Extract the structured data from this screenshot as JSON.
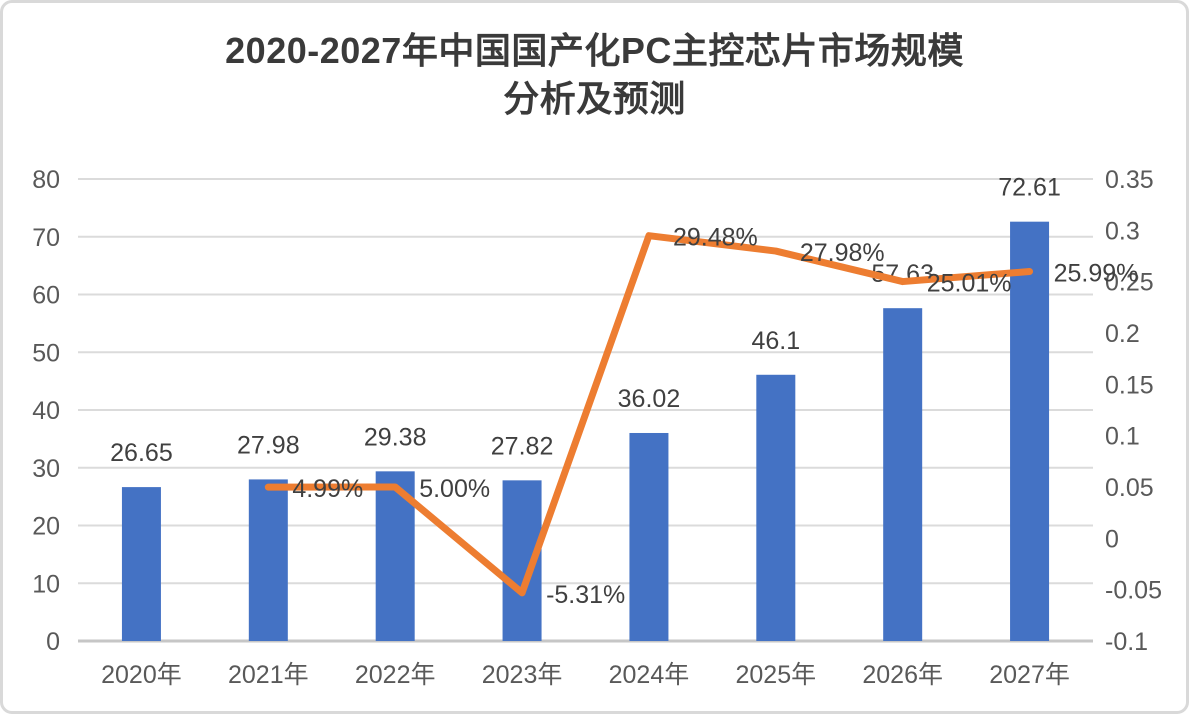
{
  "title": {
    "line1": "2020-2027年中国国产化PC主控芯片市场规模",
    "line2": "分析及预测"
  },
  "chart_data": {
    "type": "combo-bar-line",
    "categories": [
      "2020年",
      "2021年",
      "2022年",
      "2023年",
      "2024年",
      "2025年",
      "2026年",
      "2027年"
    ],
    "series": [
      {
        "type": "bar",
        "axis": "left",
        "values": [
          26.65,
          27.98,
          29.38,
          27.82,
          36.02,
          46.1,
          57.63,
          72.61
        ],
        "labels": [
          "26.65",
          "27.98",
          "29.38",
          "27.82",
          "36.02",
          "46.1",
          "57.63",
          "72.61"
        ]
      },
      {
        "type": "line",
        "axis": "right",
        "values": [
          null,
          0.0499,
          0.05,
          -0.0531,
          0.2948,
          0.2798,
          0.2501,
          0.2599
        ],
        "labels": [
          null,
          "4.99%",
          "5.00%",
          "-5.31%",
          "29.48%",
          "27.98%",
          "25.01%",
          "25.99%"
        ]
      }
    ],
    "left_axis": {
      "min": 0,
      "max": 80,
      "tick_labels": [
        "0",
        "10",
        "20",
        "30",
        "40",
        "50",
        "60",
        "70",
        "80"
      ]
    },
    "right_axis": {
      "min": -0.1,
      "max": 0.35,
      "tick_labels": [
        "-0.1",
        "-0.05",
        "0",
        "0.05",
        "0.1",
        "0.15",
        "0.2",
        "0.25",
        "0.3",
        "0.35"
      ]
    },
    "grid": true,
    "legend": "none"
  },
  "style": {
    "bar_color": "#4472C4",
    "line_color": "#ED7D31",
    "data_label_color": "#404040",
    "tick_label_color": "#595959",
    "grid_color": "#DBDBDB",
    "axis_line_color": "#C6C6C6"
  }
}
